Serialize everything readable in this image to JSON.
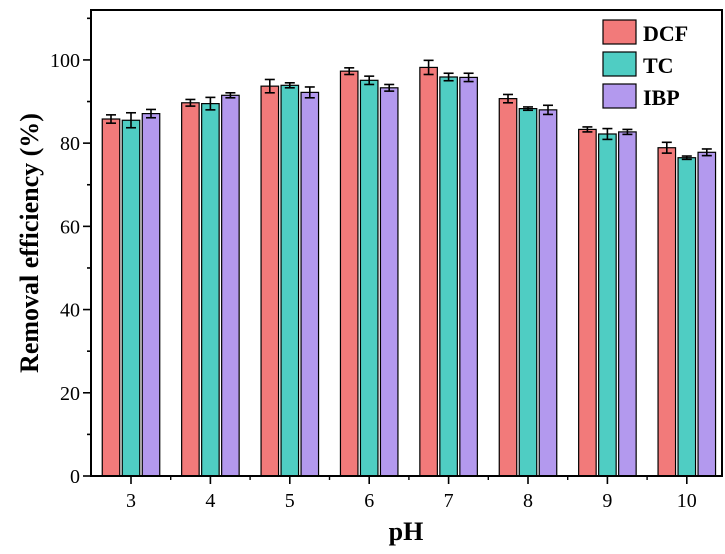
{
  "chart_data": {
    "type": "bar",
    "xlabel": "pH",
    "ylabel": "Removal efficiency (%)",
    "categories": [
      "3",
      "4",
      "5",
      "6",
      "7",
      "8",
      "9",
      "10"
    ],
    "ylim": [
      0,
      112
    ],
    "yticks": [
      0,
      20,
      40,
      60,
      80,
      100
    ],
    "legend_position": "top-right",
    "series": [
      {
        "name": "DCF",
        "color": "#f27a7a",
        "values": [
          85.8,
          89.7,
          93.7,
          97.3,
          98.2,
          90.7,
          83.3,
          78.9
        ],
        "errors": [
          1.0,
          0.8,
          1.6,
          0.8,
          1.7,
          1.0,
          0.6,
          1.3
        ]
      },
      {
        "name": "TC",
        "color": "#4fcdc3",
        "values": [
          85.5,
          89.5,
          93.9,
          95.1,
          95.9,
          88.3,
          82.2,
          76.5
        ],
        "errors": [
          1.8,
          1.5,
          0.6,
          1.0,
          0.9,
          0.4,
          1.3,
          0.4
        ]
      },
      {
        "name": "IBP",
        "color": "#b399ee",
        "values": [
          87.1,
          91.5,
          92.2,
          93.3,
          95.8,
          88.0,
          82.7,
          77.8
        ],
        "errors": [
          1.0,
          0.6,
          1.3,
          0.8,
          1.0,
          1.1,
          0.6,
          0.8
        ]
      }
    ]
  }
}
